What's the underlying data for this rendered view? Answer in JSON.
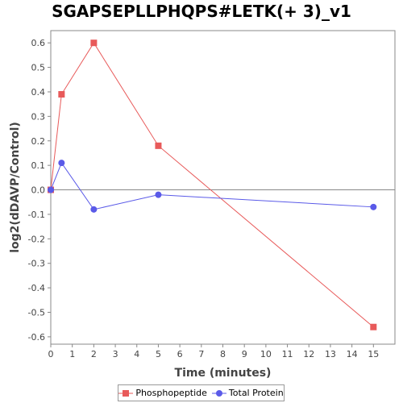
{
  "chart_data": {
    "type": "line",
    "title": "SGAPSEPLLPHQPS#LETK(+ 3)_v1",
    "xlabel": "Time (minutes)",
    "ylabel": "log2(dDAVP/Control)",
    "xlim": [
      0,
      16
    ],
    "ylim": [
      -0.63,
      0.65
    ],
    "xticks": [
      0,
      1,
      2,
      3,
      4,
      5,
      6,
      7,
      8,
      9,
      10,
      11,
      12,
      13,
      14,
      15
    ],
    "yticks": [
      0.6,
      0.5,
      0.4,
      0.3,
      0.2,
      0.1,
      0.0,
      -0.1,
      -0.2,
      -0.3,
      -0.4,
      -0.5,
      -0.6
    ],
    "ytick_labels": [
      "0.6",
      "0.5",
      "0.4",
      "0.3",
      "0.2",
      "0.1",
      "0.0",
      "-0.1",
      "-0.2",
      "-0.3",
      "-0.4",
      "-0.5",
      "-0.6"
    ],
    "zero_line": true,
    "grid": false,
    "legend_position": "bottom",
    "series": [
      {
        "name": "Phosphopeptide",
        "color": "#e85a5a",
        "marker": "square",
        "x": [
          0,
          0.5,
          2,
          5,
          15
        ],
        "y": [
          0.0,
          0.39,
          0.6,
          0.18,
          -0.56
        ]
      },
      {
        "name": "Total Protein",
        "color": "#5a5ae8",
        "marker": "circle",
        "x": [
          0,
          0.5,
          2,
          5,
          15
        ],
        "y": [
          0.0,
          0.11,
          -0.08,
          -0.02,
          -0.07
        ]
      }
    ]
  }
}
